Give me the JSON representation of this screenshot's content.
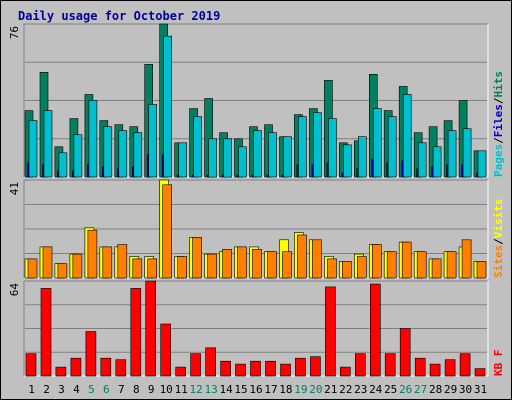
{
  "chart_data": [
    {
      "type": "bar",
      "panel": "top",
      "title": "Daily usage for October 2019",
      "ymax_label": "76",
      "ylim": [
        0,
        76
      ],
      "grid": true,
      "legend_placement": "right-vertical",
      "legend": [
        {
          "text": "Pages",
          "color": "#00c0d0"
        },
        {
          "text": "/",
          "color": "#000000"
        },
        {
          "text": "Files",
          "color": "#0000c0"
        },
        {
          "text": "/",
          "color": "#000000"
        },
        {
          "text": "Hits",
          "color": "#008060"
        }
      ],
      "categories": [
        "1",
        "2",
        "3",
        "4",
        "5",
        "6",
        "7",
        "8",
        "9",
        "10",
        "11",
        "12",
        "13",
        "14",
        "15",
        "16",
        "17",
        "18",
        "19",
        "20",
        "21",
        "22",
        "23",
        "24",
        "25",
        "26",
        "27",
        "28",
        "29",
        "30",
        "31"
      ],
      "series": [
        {
          "name": "Hits",
          "color": "#008060",
          "values": [
            33,
            52,
            15,
            29,
            41,
            28,
            26,
            25,
            56,
            76,
            17,
            34,
            39,
            22,
            19,
            25,
            26,
            20,
            31,
            34,
            48,
            17,
            18,
            51,
            33,
            45,
            22,
            25,
            28,
            38,
            13
          ]
        },
        {
          "name": "Files",
          "color": "#0000c0",
          "values": [
            7,
            6,
            3,
            3,
            6,
            5,
            4,
            5,
            11,
            11,
            1,
            1,
            1,
            1,
            1,
            1,
            1,
            1,
            6,
            6,
            7,
            2,
            4,
            9,
            7,
            8,
            4,
            5,
            6,
            6,
            2
          ]
        },
        {
          "name": "Pages",
          "color": "#00c0d0",
          "values": [
            28,
            33,
            12,
            21,
            38,
            25,
            23,
            22,
            36,
            70,
            17,
            30,
            19,
            19,
            15,
            23,
            22,
            20,
            30,
            32,
            29,
            16,
            20,
            34,
            30,
            41,
            17,
            15,
            23,
            24,
            13
          ]
        }
      ]
    },
    {
      "type": "bar",
      "panel": "middle",
      "ymax_label": "41",
      "ylim": [
        0,
        41
      ],
      "grid": true,
      "legend_placement": "right-vertical",
      "legend": [
        {
          "text": "Sites",
          "color": "#ff8000"
        },
        {
          "text": "/",
          "color": "#000000"
        },
        {
          "text": "Visits",
          "color": "#ffff00"
        }
      ],
      "categories": [
        "1",
        "2",
        "3",
        "4",
        "5",
        "6",
        "7",
        "8",
        "9",
        "10",
        "11",
        "12",
        "13",
        "14",
        "15",
        "16",
        "17",
        "18",
        "19",
        "20",
        "21",
        "22",
        "23",
        "24",
        "25",
        "26",
        "27",
        "28",
        "29",
        "30",
        "31"
      ],
      "series": [
        {
          "name": "Visits",
          "color": "#ffff00",
          "values": [
            8,
            13,
            6,
            10,
            21,
            13,
            13,
            9,
            9,
            41,
            9,
            17,
            10,
            11,
            13,
            13,
            11,
            16,
            19,
            16,
            9,
            7,
            10,
            14,
            11,
            15,
            11,
            8,
            11,
            13,
            7
          ]
        },
        {
          "name": "Sites",
          "color": "#ff8000",
          "values": [
            8,
            13,
            6,
            10,
            20,
            13,
            14,
            8,
            8,
            39,
            9,
            17,
            10,
            12,
            13,
            12,
            11,
            11,
            18,
            16,
            8,
            7,
            9,
            14,
            11,
            15,
            11,
            8,
            11,
            16,
            7
          ]
        }
      ]
    },
    {
      "type": "bar",
      "panel": "bottom",
      "ymax_label": "64",
      "ylim": [
        0,
        64
      ],
      "grid": true,
      "legend_placement": "right-vertical",
      "legend": [
        {
          "text": "KB F",
          "color": "#ff0000"
        }
      ],
      "categories": [
        "1",
        "2",
        "3",
        "4",
        "5",
        "6",
        "7",
        "8",
        "9",
        "10",
        "11",
        "12",
        "13",
        "14",
        "15",
        "16",
        "17",
        "18",
        "19",
        "20",
        "21",
        "22",
        "23",
        "24",
        "25",
        "26",
        "27",
        "28",
        "29",
        "30",
        "31"
      ],
      "weekend_days": [
        "5",
        "6",
        "12",
        "13",
        "19",
        "20",
        "26",
        "27"
      ],
      "weekend_label_color": "#008060",
      "series": [
        {
          "name": "KB F",
          "color": "#ff0000",
          "values": [
            15,
            59,
            6,
            12,
            30,
            12,
            11,
            59,
            64,
            35,
            6,
            15,
            19,
            10,
            8,
            10,
            10,
            8,
            12,
            13,
            60,
            6,
            15,
            62,
            15,
            32,
            12,
            8,
            11,
            15,
            5
          ]
        }
      ]
    }
  ]
}
